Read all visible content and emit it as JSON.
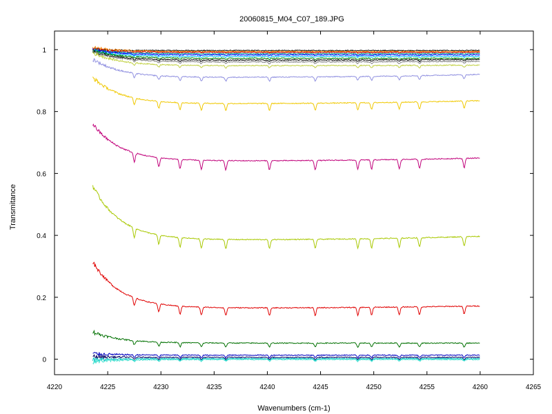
{
  "chart_data": {
    "type": "line",
    "title": "20060815_M04_C07_189.JPG",
    "xlabel": "Wavenumbers (cm-1)",
    "ylabel": "Transmitance",
    "xlim": [
      4220,
      4265
    ],
    "ylim": [
      -0.05,
      1.06
    ],
    "x_ticks": [
      4220,
      4225,
      4230,
      4235,
      4240,
      4245,
      4250,
      4255,
      4260,
      4265
    ],
    "y_ticks": [
      0,
      0.2,
      0.4,
      0.6,
      0.8,
      1
    ],
    "x_range": [
      4223.6,
      4260.0
    ],
    "grid": false,
    "legend": "none",
    "absorption_lines_cm1": [
      4227.5,
      4229.8,
      4231.8,
      4233.8,
      4236.1,
      4240.2,
      4244.5,
      4248.5,
      4249.8,
      4252.4,
      4254.3,
      4258.5
    ],
    "series": [
      {
        "color": "#000000",
        "values": {
          "start": 1.0,
          "mid": 0.997,
          "end": 0.997
        }
      },
      {
        "color": "#ff8000",
        "values": {
          "start": 1.005,
          "mid": 0.994,
          "end": 0.994
        }
      },
      {
        "color": "#c00000",
        "values": {
          "start": 1.0,
          "mid": 0.991,
          "end": 0.991
        }
      },
      {
        "color": "#00a0a0",
        "values": {
          "start": 0.998,
          "mid": 0.987,
          "end": 0.987
        }
      },
      {
        "color": "#0000ff",
        "values": {
          "start": 0.997,
          "mid": 0.983,
          "end": 0.983
        }
      },
      {
        "color": "#00c0ff",
        "values": {
          "start": 0.995,
          "mid": 0.978,
          "end": 0.978
        }
      },
      {
        "color": "#008000",
        "values": {
          "start": 0.995,
          "mid": 0.972,
          "end": 0.972
        }
      },
      {
        "color": "#000000",
        "values": {
          "start": 0.993,
          "mid": 0.966,
          "end": 0.968
        }
      },
      {
        "color": "#808080",
        "values": {
          "start": 0.993,
          "mid": 0.96,
          "end": 0.962
        }
      },
      {
        "color": "#c0d040",
        "values": {
          "start": 0.99,
          "mid": 0.948,
          "end": 0.95
        }
      },
      {
        "color": "#9090e0",
        "values": {
          "start": 0.97,
          "mid": 0.91,
          "end": 0.92
        }
      },
      {
        "color": "#f0c800",
        "values": {
          "start": 0.91,
          "mid": 0.825,
          "end": 0.835
        }
      },
      {
        "color": "#c0007a",
        "values": {
          "start": 0.76,
          "mid": 0.64,
          "end": 0.65
        }
      },
      {
        "color": "#a8c800",
        "values": {
          "start": 0.56,
          "mid": 0.385,
          "end": 0.397
        }
      },
      {
        "color": "#e00000",
        "values": {
          "start": 0.315,
          "mid": 0.165,
          "end": 0.172
        }
      },
      {
        "color": "#007000",
        "values": {
          "start": 0.088,
          "mid": 0.052,
          "end": 0.052
        }
      },
      {
        "color": "#0000c0",
        "values": {
          "start": 0.018,
          "mid": 0.013,
          "end": 0.013
        }
      },
      {
        "color": "#000060",
        "values": {
          "start": 0.008,
          "mid": 0.006,
          "end": 0.006
        }
      },
      {
        "color": "#00c0c0",
        "values": {
          "start": -0.002,
          "mid": 0.002,
          "end": 0.002
        }
      },
      {
        "color": "#40e0d0",
        "values": {
          "start": -0.008,
          "mid": -0.001,
          "end": -0.001
        }
      }
    ]
  }
}
